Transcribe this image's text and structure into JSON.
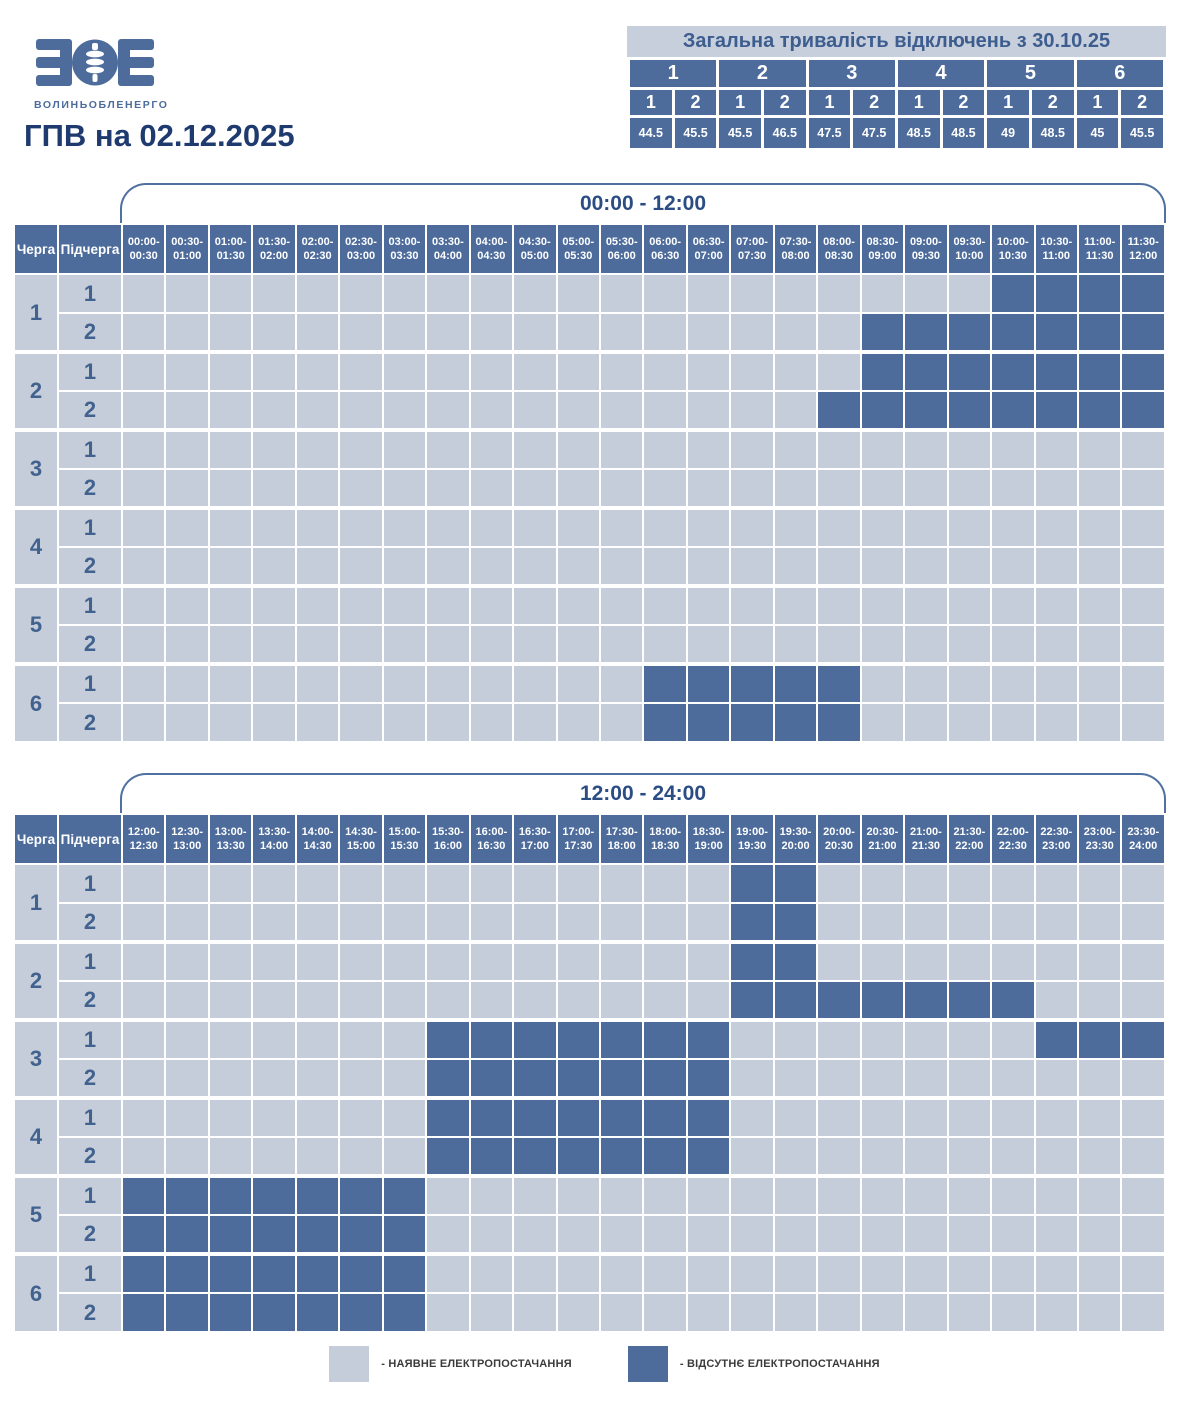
{
  "logo": {
    "company": "ВОЛИНЬОБЛЕНЕРГО"
  },
  "title": "ГПВ на 02.12.2025",
  "summary": {
    "title": "Загальна тривалість відключень з 30.10.25",
    "groups": [
      "1",
      "2",
      "3",
      "4",
      "5",
      "6"
    ],
    "subcols": [
      "1",
      "2",
      "1",
      "2",
      "1",
      "2",
      "1",
      "2",
      "1",
      "2",
      "1",
      "2"
    ],
    "values": [
      "44.5",
      "45.5",
      "45.5",
      "46.5",
      "47.5",
      "47.5",
      "48.5",
      "48.5",
      "49",
      "48.5",
      "45",
      "45.5"
    ]
  },
  "grid": {
    "queue_header": "Черга",
    "subqueue_header": "Підчерга"
  },
  "tables": [
    {
      "period_label": "00:00 - 12:00",
      "col_headers": [
        "00:00-00:30",
        "00:30-01:00",
        "01:00-01:30",
        "01:30-02:00",
        "02:00-02:30",
        "02:30-03:00",
        "03:00-03:30",
        "03:30-04:00",
        "04:00-04:30",
        "04:30-05:00",
        "05:00-05:30",
        "05:30-06:00",
        "06:00-06:30",
        "06:30-07:00",
        "07:00-07:30",
        "07:30-08:00",
        "08:00-08:30",
        "08:30-09:00",
        "09:00-09:30",
        "09:30-10:00",
        "10:00-10:30",
        "10:30-11:00",
        "11:00-11:30",
        "11:30-12:00"
      ],
      "rows": [
        {
          "queue": "1",
          "sub": "1",
          "off": [
            20,
            21,
            22,
            23
          ]
        },
        {
          "queue": "1",
          "sub": "2",
          "off": [
            17,
            18,
            19,
            20,
            21,
            22,
            23
          ]
        },
        {
          "queue": "2",
          "sub": "1",
          "off": [
            17,
            18,
            19,
            20,
            21,
            22,
            23
          ]
        },
        {
          "queue": "2",
          "sub": "2",
          "off": [
            16,
            17,
            18,
            19,
            20,
            21,
            22,
            23
          ]
        },
        {
          "queue": "3",
          "sub": "1",
          "off": []
        },
        {
          "queue": "3",
          "sub": "2",
          "off": []
        },
        {
          "queue": "4",
          "sub": "1",
          "off": []
        },
        {
          "queue": "4",
          "sub": "2",
          "off": []
        },
        {
          "queue": "5",
          "sub": "1",
          "off": []
        },
        {
          "queue": "5",
          "sub": "2",
          "off": []
        },
        {
          "queue": "6",
          "sub": "1",
          "off": [
            12,
            13,
            14,
            15,
            16
          ]
        },
        {
          "queue": "6",
          "sub": "2",
          "off": [
            12,
            13,
            14,
            15,
            16
          ]
        }
      ]
    },
    {
      "period_label": "12:00 - 24:00",
      "col_headers": [
        "12:00-12:30",
        "12:30-13:00",
        "13:00-13:30",
        "13:30-14:00",
        "14:00-14:30",
        "14:30-15:00",
        "15:00-15:30",
        "15:30-16:00",
        "16:00-16:30",
        "16:30-17:00",
        "17:00-17:30",
        "17:30-18:00",
        "18:00-18:30",
        "18:30-19:00",
        "19:00-19:30",
        "19:30-20:00",
        "20:00-20:30",
        "20:30-21:00",
        "21:00-21:30",
        "21:30-22:00",
        "22:00-22:30",
        "22:30-23:00",
        "23:00-23:30",
        "23:30-24:00"
      ],
      "rows": [
        {
          "queue": "1",
          "sub": "1",
          "off": [
            14,
            15
          ]
        },
        {
          "queue": "1",
          "sub": "2",
          "off": [
            14,
            15
          ]
        },
        {
          "queue": "2",
          "sub": "1",
          "off": [
            14,
            15
          ]
        },
        {
          "queue": "2",
          "sub": "2",
          "off": [
            14,
            15,
            16,
            17,
            18,
            19,
            20
          ]
        },
        {
          "queue": "3",
          "sub": "1",
          "off": [
            7,
            8,
            9,
            10,
            11,
            12,
            13,
            21,
            22,
            23
          ]
        },
        {
          "queue": "3",
          "sub": "2",
          "off": [
            7,
            8,
            9,
            10,
            11,
            12,
            13
          ]
        },
        {
          "queue": "4",
          "sub": "1",
          "off": [
            7,
            8,
            9,
            10,
            11,
            12,
            13
          ]
        },
        {
          "queue": "4",
          "sub": "2",
          "off": [
            7,
            8,
            9,
            10,
            11,
            12,
            13
          ]
        },
        {
          "queue": "5",
          "sub": "1",
          "off": [
            0,
            1,
            2,
            3,
            4,
            5,
            6
          ]
        },
        {
          "queue": "5",
          "sub": "2",
          "off": [
            0,
            1,
            2,
            3,
            4,
            5,
            6
          ]
        },
        {
          "queue": "6",
          "sub": "1",
          "off": [
            0,
            1,
            2,
            3,
            4,
            5,
            6
          ]
        },
        {
          "queue": "6",
          "sub": "2",
          "off": [
            0,
            1,
            2,
            3,
            4,
            5,
            6
          ]
        }
      ]
    }
  ],
  "legend": {
    "available": "- НАЯВНЕ ЕЛЕКТРОПОСТАЧАННЯ",
    "absent": "- ВІДСУТНЄ ЕЛЕКТРОПОСТАЧАННЯ"
  },
  "colors": {
    "power_on": "#c4cdd9",
    "power_off": "#4d6c9c",
    "header_band": "#c7cfdc",
    "title_text": "#1e3a6e",
    "accent_blue": "#4d6c9c"
  },
  "chart_data": {
    "type": "heatmap",
    "title": "ГПВ на 02.12.2025",
    "subtitle": "Загальна тривалість відключень з 30.10.25",
    "x_axis": "час доби, крок 30 хв",
    "x_range": [
      "00:00",
      "24:00"
    ],
    "y_axis": "черга.підчерга",
    "rows": [
      "1.1",
      "1.2",
      "2.1",
      "2.2",
      "3.1",
      "3.2",
      "4.1",
      "4.2",
      "5.1",
      "5.2",
      "6.1",
      "6.2"
    ],
    "legend": [
      "наявне електропостачання",
      "відсутнє електропостачання"
    ],
    "off_intervals": {
      "1.1": [
        "10:00-12:00",
        "19:00-20:00"
      ],
      "1.2": [
        "08:30-12:00",
        "19:00-20:00"
      ],
      "2.1": [
        "08:30-12:00",
        "19:00-20:00"
      ],
      "2.2": [
        "08:00-12:00",
        "19:00-22:30"
      ],
      "3.1": [
        "15:30-19:00",
        "22:30-24:00"
      ],
      "3.2": [
        "15:30-19:00"
      ],
      "4.1": [
        "15:30-19:00"
      ],
      "4.2": [
        "15:30-19:00"
      ],
      "5.1": [
        "12:00-15:30"
      ],
      "5.2": [
        "12:00-15:30"
      ],
      "6.1": [
        "06:00-08:30",
        "12:00-15:30"
      ],
      "6.2": [
        "06:00-08:30",
        "12:00-15:30"
      ]
    },
    "total_outage_hours": {
      "1.1": 44.5,
      "1.2": 45.5,
      "2.1": 45.5,
      "2.2": 46.5,
      "3.1": 47.5,
      "3.2": 47.5,
      "4.1": 48.5,
      "4.2": 48.5,
      "5.1": 49,
      "5.2": 48.5,
      "6.1": 45,
      "6.2": 45.5
    }
  }
}
